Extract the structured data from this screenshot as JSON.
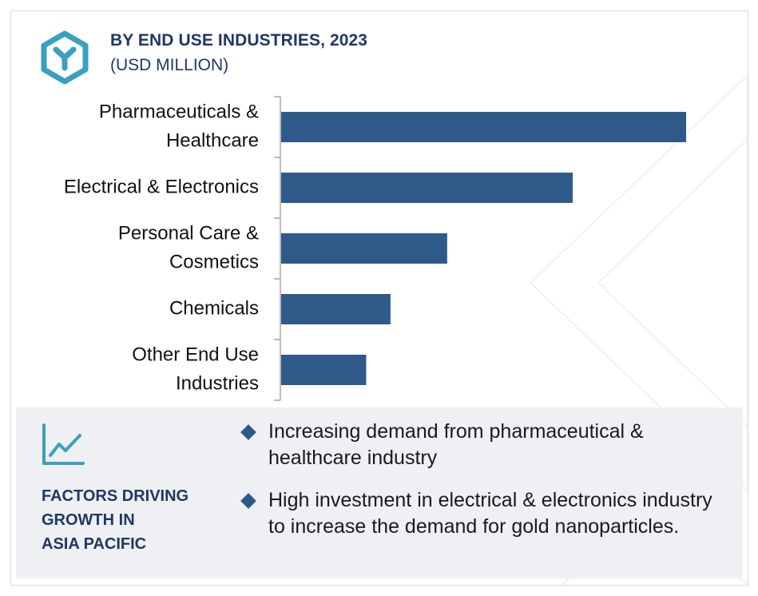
{
  "header": {
    "title": "BY END USE INDUSTRIES, 2023",
    "subtitle": "(USD MILLION)",
    "logo_icon": "hexagon-y-logo-icon"
  },
  "chart_data": {
    "type": "bar",
    "orientation": "horizontal",
    "title": "BY END USE INDUSTRIES, 2023",
    "subtitle": "(USD MILLION)",
    "categories": [
      [
        "Pharmaceuticals &",
        "Healthcare"
      ],
      [
        "Electrical & Electronics"
      ],
      [
        "Personal Care &",
        "Cosmetics"
      ],
      [
        "Chemicals"
      ],
      [
        "Other End Use",
        "Industries"
      ]
    ],
    "values": [
      100,
      72,
      41,
      27,
      21
    ],
    "value_scale": "relative (no axis values printed)",
    "xlim": [
      0,
      100
    ],
    "grid": false,
    "legend": "none",
    "bar_color": "#2e5a8a"
  },
  "factors": {
    "icon": "line-chart-trend-icon",
    "title_lines": [
      "FACTORS DRIVING",
      "GROWTH IN",
      "ASIA PACIFIC"
    ],
    "bullets": [
      "Increasing demand from pharmaceutical & healthcare industry",
      "High investment in electrical & electronics industry to increase the demand for gold nanoparticles."
    ],
    "accent_color": "#2e5a8a",
    "icon_color": "#3aa0c0"
  }
}
